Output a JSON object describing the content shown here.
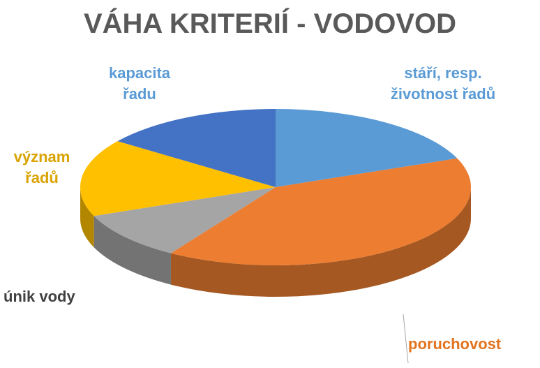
{
  "chart_data": {
    "type": "pie3d",
    "title": "VÁHA KRITERIÍ - VODOVOD",
    "categories": [
      "stáří, resp. životnost řadů",
      "poruchovost",
      "únik vody",
      "význam řadů",
      "kapacita řadu"
    ],
    "values": [
      19,
      40,
      10,
      16,
      15
    ],
    "colors": [
      "#5b9bd5",
      "#ed7d31",
      "#a5a5a5",
      "#ffc000",
      "#4472c4"
    ]
  }
}
